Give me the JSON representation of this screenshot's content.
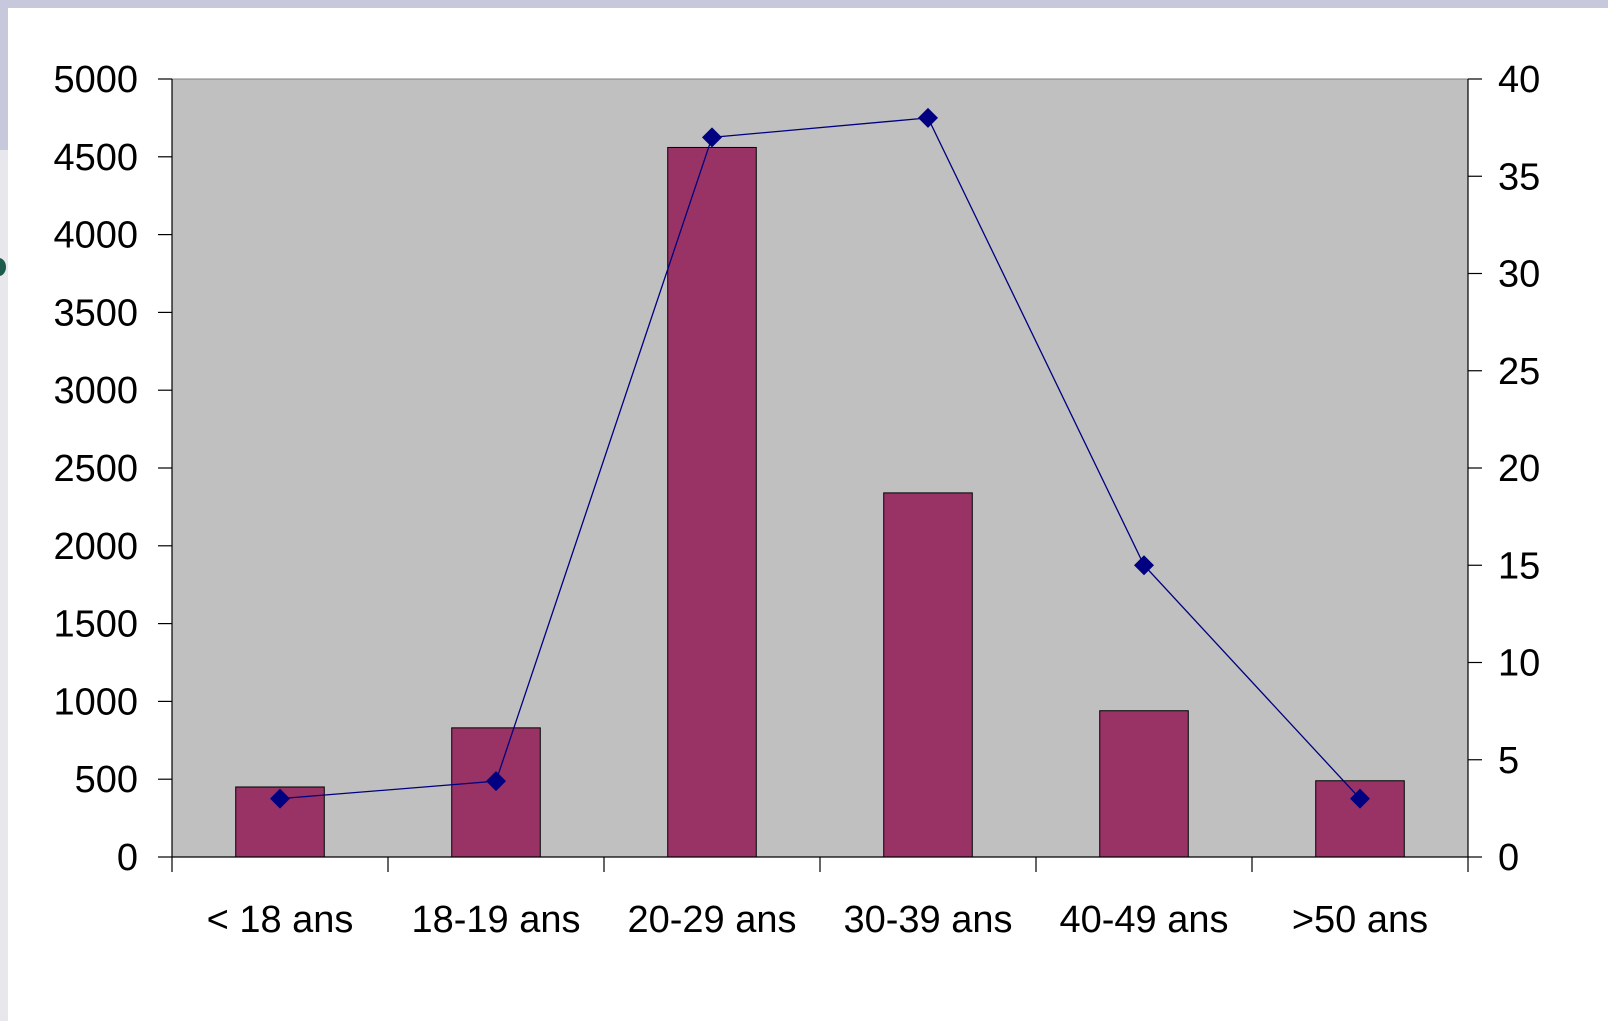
{
  "chart_data": {
    "type": "bar",
    "categories": [
      "< 18 ans",
      "18-19 ans",
      "20-29 ans",
      "30-39 ans",
      "40-49 ans",
      ">50 ans"
    ],
    "series": [
      {
        "values": [
          450,
          830,
          4560,
          2340,
          940,
          490
        ],
        "axis": "left",
        "kind": "bar"
      },
      {
        "values": [
          3,
          3.9,
          37,
          38,
          15,
          3
        ],
        "axis": "right",
        "kind": "line"
      }
    ],
    "left_axis": {
      "ylim": [
        0,
        5000
      ],
      "ticks": [
        "0",
        "500",
        "1000",
        "1500",
        "2000",
        "2500",
        "3000",
        "3500",
        "4000",
        "4500",
        "5000"
      ]
    },
    "right_axis": {
      "ylim": [
        0,
        40
      ],
      "ticks": [
        "0",
        "5",
        "10",
        "15",
        "20",
        "25",
        "30",
        "35",
        "40"
      ]
    },
    "title": "",
    "xlabel": "",
    "ylabel": "",
    "grid": false,
    "colors": {
      "bar": "#993366",
      "line": "#000080",
      "plot_bg": "#c0c0c0",
      "frame_bg": "#c8c8dc"
    }
  }
}
